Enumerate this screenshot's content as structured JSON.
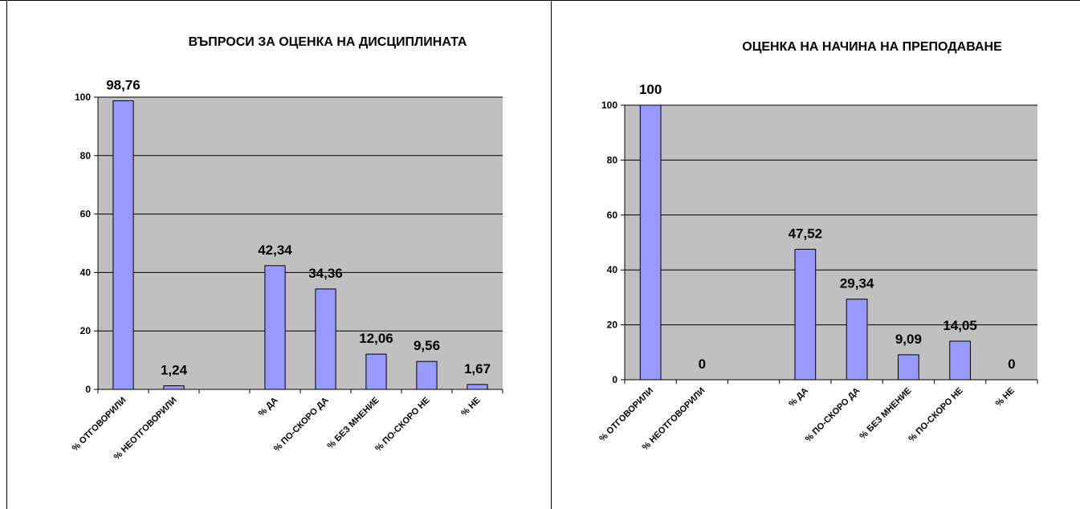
{
  "colors": {
    "plot_background": "#c0c0c0",
    "bar_fill": "#9999ff",
    "bar_stroke": "#000000",
    "grid": "#000000"
  },
  "chart_data": [
    {
      "type": "bar",
      "title": "ВЪПРОСИ ЗА ОЦЕНКА НА ДИСЦИПЛИНАТА",
      "xlabel": "",
      "ylabel": "",
      "ylim": [
        0,
        100
      ],
      "yticks": [
        0,
        20,
        40,
        60,
        80,
        100
      ],
      "grid": true,
      "legend": "none",
      "categories": [
        "% ОТГОВОРИЛИ",
        "% НЕОТГОВОРИЛИ",
        "",
        "% ДА",
        "% ПО-СКОРО ДА",
        "% БЕЗ МНЕНИЕ",
        "% ПО-СКОРО НЕ",
        "% НЕ"
      ],
      "values": [
        98.76,
        1.24,
        null,
        42.34,
        34.36,
        12.06,
        9.56,
        1.67
      ],
      "data_labels": [
        "98,76",
        "1,24",
        "",
        "42,34",
        "34,36",
        "12,06",
        "9,56",
        "1,67"
      ]
    },
    {
      "type": "bar",
      "title": "ОЦЕНКА НА НАЧИНА НА ПРЕПОДАВАНЕ",
      "xlabel": "",
      "ylabel": "",
      "ylim": [
        0,
        100
      ],
      "yticks": [
        0,
        20,
        40,
        60,
        80,
        100
      ],
      "grid": true,
      "legend": "none",
      "categories": [
        "% ОТГОВОРИЛИ",
        "% НЕОТГОВОРИЛИ",
        "",
        "% ДА",
        "% ПО-СКОРО ДА",
        "% БЕЗ МНЕНИЕ",
        "% ПО-СКОРО НЕ",
        "% НЕ"
      ],
      "values": [
        100,
        0,
        null,
        47.52,
        29.34,
        9.09,
        14.05,
        0
      ],
      "data_labels": [
        "100",
        "0",
        "",
        "47,52",
        "29,34",
        "9,09",
        "14,05",
        "0"
      ]
    }
  ]
}
